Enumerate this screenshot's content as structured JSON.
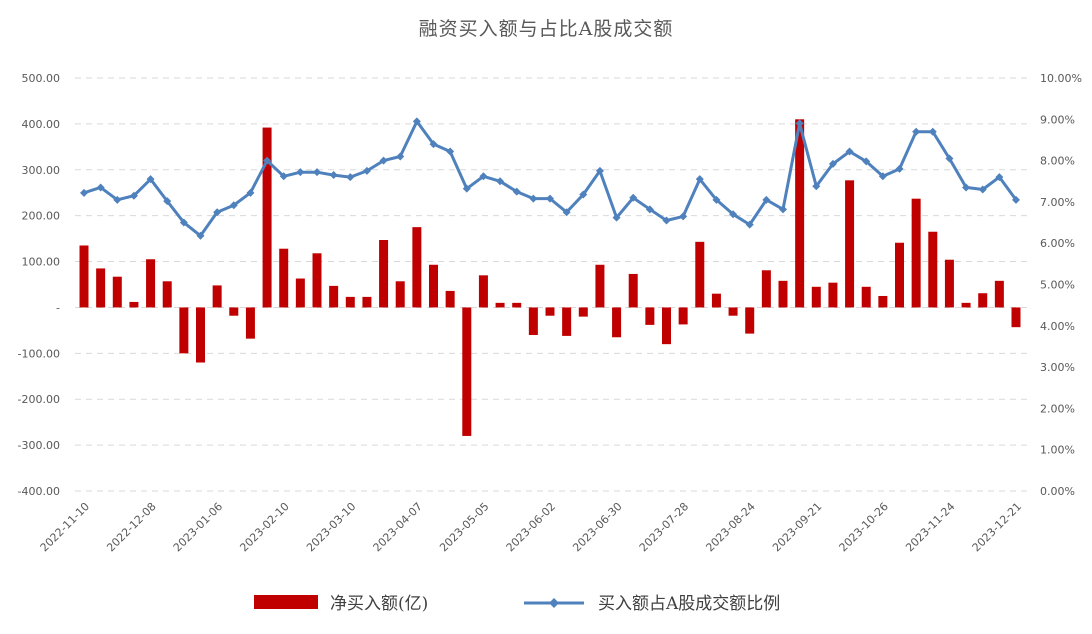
{
  "chart_data": {
    "type": "bar+line",
    "title": "融资买入额与占比A股成交额",
    "x_tick_labels": [
      "2022-11-10",
      "2022-12-08",
      "2023-01-06",
      "2023-02-10",
      "2023-03-10",
      "2023-04-07",
      "2023-05-05",
      "2023-06-02",
      "2023-06-30",
      "2023-07-28",
      "2023-08-24",
      "2023-09-21",
      "2023-10-26",
      "2023-11-24",
      "2023-12-21"
    ],
    "x_tick_indices": [
      0,
      4,
      8,
      12,
      16,
      20,
      24,
      28,
      32,
      36,
      40,
      44,
      48,
      52,
      56
    ],
    "left_axis": {
      "min": -400,
      "max": 500,
      "step": 100,
      "tick_labels": [
        "-400.00",
        "-300.00",
        "-200.00",
        "-100.00",
        "-",
        "100.00",
        "200.00",
        "300.00",
        "400.00",
        "500.00"
      ]
    },
    "right_axis": {
      "min": 0,
      "max": 10,
      "step": 1,
      "tick_labels": [
        "0.00%",
        "1.00%",
        "2.00%",
        "3.00%",
        "4.00%",
        "5.00%",
        "6.00%",
        "7.00%",
        "8.00%",
        "9.00%",
        "10.00%"
      ]
    },
    "grid": "horizontal-dashed",
    "legend_position": "bottom-center",
    "series": [
      {
        "name": "净买入额(亿)",
        "type": "bar",
        "axis": "left",
        "color": "#C00000",
        "values": [
          135,
          85,
          67,
          12,
          105,
          57,
          -100,
          -120,
          48,
          -18,
          -68,
          392,
          128,
          63,
          118,
          47,
          23,
          23,
          147,
          57,
          175,
          93,
          36,
          -280,
          70,
          10,
          10,
          -60,
          -18,
          -62,
          -20,
          93,
          -65,
          73,
          -38,
          -80,
          -37,
          143,
          30,
          -18,
          -57,
          81,
          58,
          410,
          45,
          54,
          277,
          45,
          25,
          141,
          237,
          165,
          104,
          10,
          31,
          58,
          -43
        ]
      },
      {
        "name": "买入额占A股成交额比例",
        "type": "line",
        "axis": "right",
        "color": "#4F81BD",
        "values": [
          7.22,
          7.35,
          7.05,
          7.15,
          7.55,
          7.02,
          6.5,
          6.18,
          6.75,
          6.92,
          7.22,
          8.0,
          7.62,
          7.72,
          7.72,
          7.65,
          7.6,
          7.75,
          8.0,
          8.1,
          8.95,
          8.4,
          8.22,
          7.32,
          7.62,
          7.5,
          7.25,
          7.08,
          7.08,
          6.75,
          7.18,
          7.75,
          6.62,
          7.1,
          6.82,
          6.55,
          6.65,
          7.55,
          7.05,
          6.7,
          6.45,
          7.05,
          6.82,
          8.9,
          7.38,
          7.92,
          8.22,
          7.98,
          7.62,
          7.8,
          8.7,
          8.7,
          8.05,
          7.35,
          7.3,
          7.6,
          7.05
        ]
      }
    ]
  }
}
